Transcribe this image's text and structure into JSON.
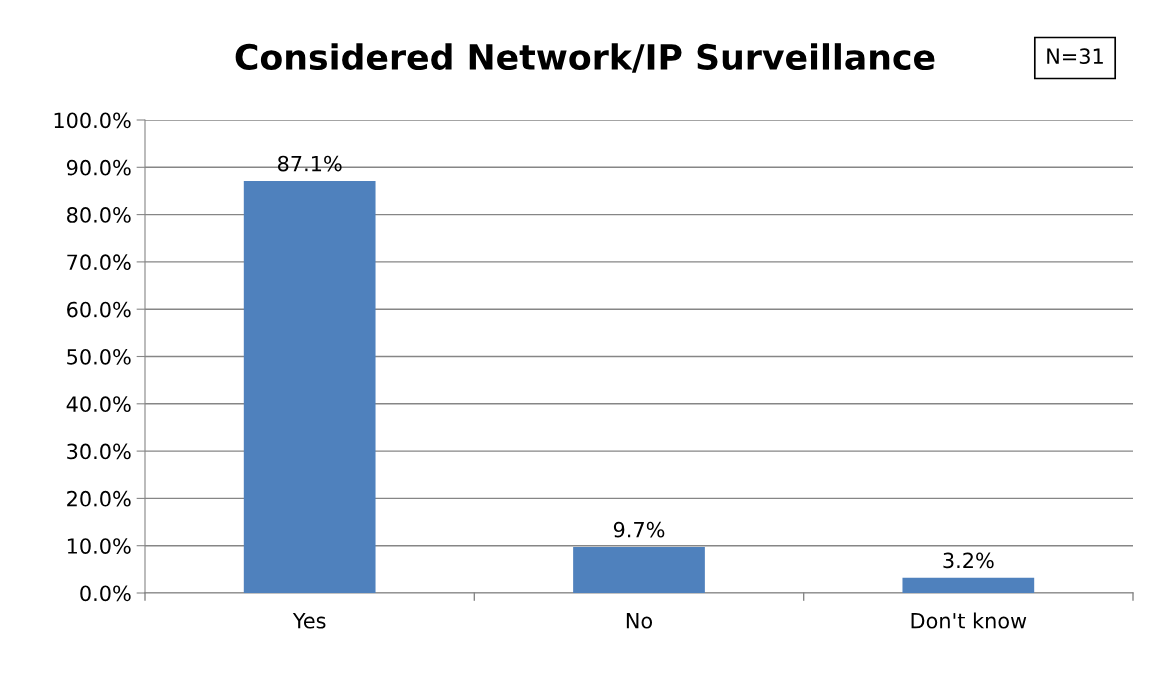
{
  "chart_data": {
    "type": "bar",
    "title": "Considered Network/IP Surveillance",
    "annotations": [
      "N=31"
    ],
    "categories": [
      "Yes",
      "No",
      "Don't know"
    ],
    "values": [
      87.1,
      9.7,
      3.2
    ],
    "color": "#4f81bd",
    "value_labels": [
      "87.1%",
      "9.7%",
      "3.2%"
    ],
    "ylim": [
      0,
      100
    ],
    "yticks": [
      {
        "value": 0,
        "label": "0.0%"
      },
      {
        "value": 10,
        "label": "10.0%"
      },
      {
        "value": 20,
        "label": "20.0%"
      },
      {
        "value": 30,
        "label": "30.0%"
      },
      {
        "value": 40,
        "label": "40.0%"
      },
      {
        "value": 50,
        "label": "50.0%"
      },
      {
        "value": 60,
        "label": "60.0%"
      },
      {
        "value": 70,
        "label": "70.0%"
      },
      {
        "value": 80,
        "label": "80.0%"
      },
      {
        "value": 90,
        "label": "90.0%"
      },
      {
        "value": 100,
        "label": "100.0%"
      }
    ],
    "grid": "y"
  }
}
